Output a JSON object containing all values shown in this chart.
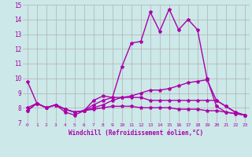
{
  "xlabel": "Windchill (Refroidissement éolien,°C)",
  "ylabel": "",
  "xlim": [
    -0.5,
    23.5
  ],
  "ylim": [
    7,
    15
  ],
  "xticks": [
    0,
    1,
    2,
    3,
    4,
    5,
    6,
    7,
    8,
    9,
    10,
    11,
    12,
    13,
    14,
    15,
    16,
    17,
    18,
    19,
    20,
    21,
    22,
    23
  ],
  "yticks": [
    7,
    8,
    9,
    10,
    11,
    12,
    13,
    14,
    15
  ],
  "bg_color": "#cce8e8",
  "grid_color": "#b0b0b0",
  "line_color": "#aa00aa",
  "line_width": 1.0,
  "marker": "*",
  "marker_size": 3,
  "series": {
    "line1": [
      9.8,
      8.3,
      8.0,
      8.2,
      7.7,
      7.5,
      7.8,
      8.5,
      8.8,
      8.7,
      10.8,
      12.4,
      12.5,
      14.5,
      13.2,
      14.7,
      13.3,
      14.0,
      13.3,
      10.0,
      8.1,
      7.7,
      7.6,
      7.5
    ],
    "line2": [
      8.0,
      8.3,
      8.0,
      8.2,
      7.9,
      7.7,
      7.8,
      8.2,
      8.5,
      8.7,
      8.7,
      8.7,
      8.7,
      8.5,
      8.5,
      8.5,
      8.5,
      8.5,
      8.5,
      8.5,
      8.5,
      8.1,
      7.7,
      7.5
    ],
    "line3": [
      7.8,
      8.3,
      8.0,
      8.2,
      7.9,
      7.7,
      7.8,
      8.0,
      8.2,
      8.5,
      8.7,
      8.8,
      9.0,
      9.2,
      9.2,
      9.3,
      9.5,
      9.7,
      9.8,
      9.9,
      8.5,
      8.1,
      7.7,
      7.5
    ],
    "line4": [
      7.8,
      8.3,
      8.0,
      8.2,
      7.9,
      7.7,
      7.8,
      7.9,
      8.0,
      8.1,
      8.1,
      8.1,
      8.0,
      8.0,
      8.0,
      8.0,
      7.9,
      7.9,
      7.9,
      7.8,
      7.8,
      7.7,
      7.6,
      7.5
    ]
  }
}
